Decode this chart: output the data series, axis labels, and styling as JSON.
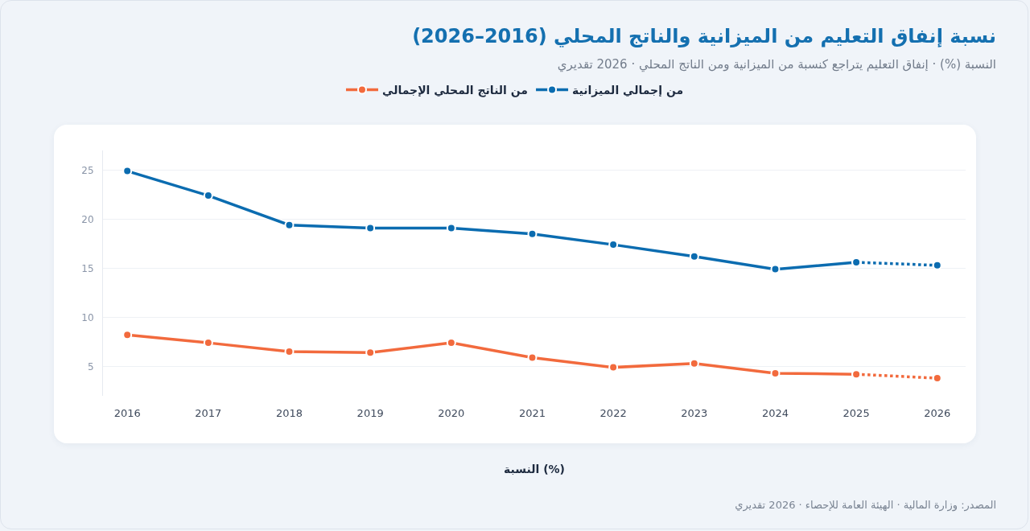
{
  "chart_data": {
    "type": "line",
    "title": "نسبة إنفاق التعليم من الميزانية والناتج المحلي (2016–2026)",
    "subtitle": "النسبة (%) · إنفاق التعليم يتراجع كنسبة من الميزانية ومن الناتج المحلي · 2026 تقديري",
    "xlabel": "النسبة (%)",
    "annotations": [
      "المصدر: وزارة المالية · الهيئة العامة للإحصاء · 2026 تقديري"
    ],
    "series": [
      {
        "name": "من إجمالي الميزانية",
        "color": "#0b6cb0",
        "x": [
          2016,
          2017,
          2018,
          2019,
          2020,
          2021,
          2022,
          2023,
          2024,
          2025
        ],
        "values": [
          24.9,
          22.4,
          19.4,
          19.1,
          19.1,
          18.5,
          17.4,
          16.2,
          14.9,
          15.6
        ]
      },
      {
        "name": "من الناتج المحلي الإجمالي",
        "color": "#f26a3d",
        "x": [
          2016,
          2017,
          2018,
          2019,
          2020,
          2021,
          2022,
          2023,
          2024,
          2025
        ],
        "values": [
          8.2,
          7.4,
          6.5,
          6.4,
          7.4,
          5.9,
          4.9,
          5.3,
          4.3,
          4.2
        ]
      },
      {
        "color": "#0b6cb0",
        "x": [
          2025,
          2026
        ],
        "values": [
          15.6,
          15.3
        ],
        "line_style": "dotted"
      },
      {
        "color": "#f26a3d",
        "x": [
          2025,
          2026
        ],
        "values": [
          4.2,
          3.8
        ],
        "line_style": "dotted"
      }
    ],
    "xlim": [
      2015.7,
      2026.35
    ],
    "xticks": [
      2016,
      2017,
      2018,
      2019,
      2020,
      2021,
      2022,
      2023,
      2024,
      2025,
      2026
    ],
    "ylim": [
      2,
      27
    ],
    "yticks": [
      5,
      10,
      15,
      20,
      25
    ],
    "grid": "y",
    "legend": "top",
    "marker": "circle",
    "line_style": "solid"
  }
}
